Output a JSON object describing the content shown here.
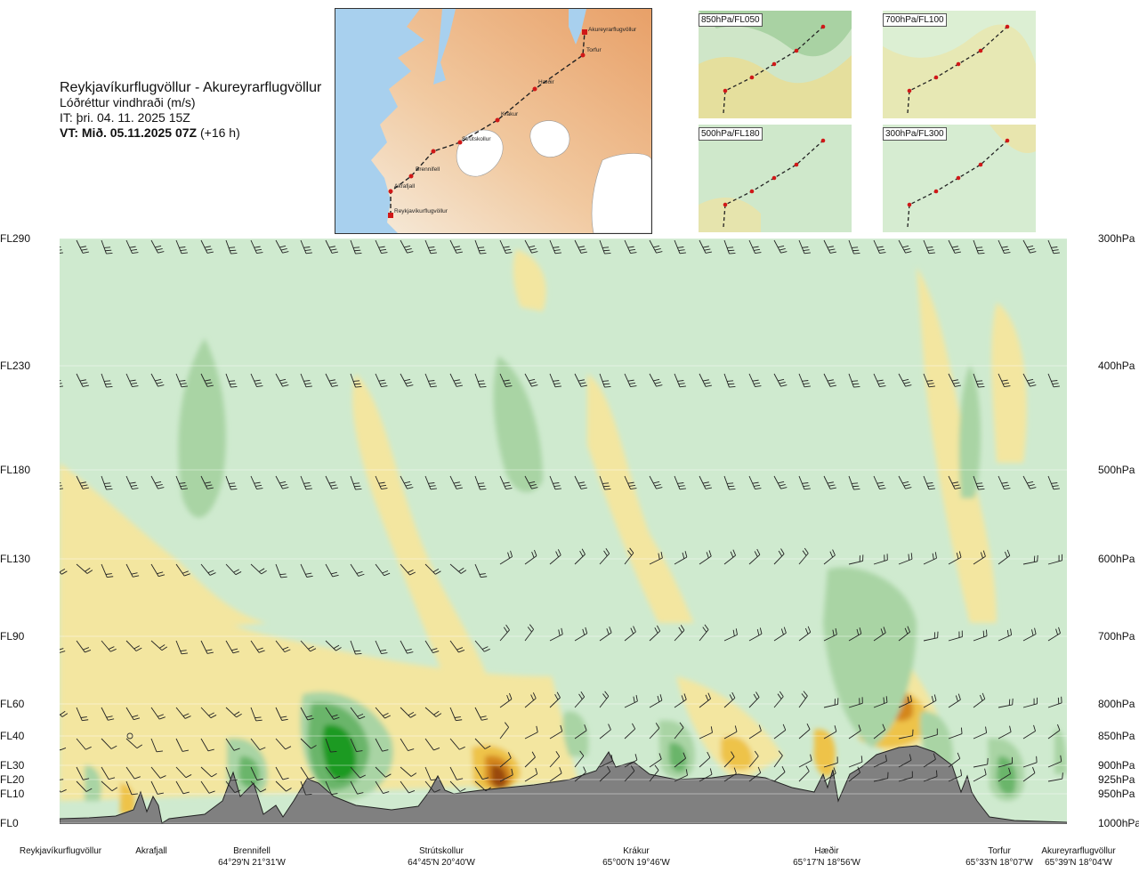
{
  "header": {
    "route": "Reykjavíkurflugvöllur - Akureyrarflugvöllur",
    "variable": "Lóðréttur vindhraði (m/s)",
    "issue_time": "IT: þri. 04. 11. 2025 15Z",
    "valid_time": "VT: Mið. 05.11.2025 07Z",
    "lead": "(+16 h)"
  },
  "map": {
    "labels": [
      "Akureyrarflugvöllur",
      "Torfur",
      "Hæðir",
      "Krákur",
      "Strútskollur",
      "Brennifell",
      "Akrafjall",
      "Reykjavíkurflugvöllur"
    ],
    "colors": {
      "sea": "#a8d0ee",
      "land_low": "#f3ecdd",
      "land_high": "#e7a472",
      "ice": "#ffffff",
      "route": "#d01818"
    }
  },
  "thumbs": [
    {
      "label": "850hPa/FL050"
    },
    {
      "label": "700hPa/FL100"
    },
    {
      "label": "500hPa/FL180"
    },
    {
      "label": "300hPa/FL300"
    }
  ],
  "chart_data": {
    "type": "heatmap",
    "title": "Lóðréttur vindhraði (m/s)",
    "left_axis_labels": [
      "FL290",
      "FL230",
      "FL180",
      "FL130",
      "FL90",
      "FL60",
      "FL40",
      "FL30",
      "FL20",
      "FL10",
      "FL0"
    ],
    "right_axis_labels": [
      "300hPa",
      "400hPa",
      "500hPa",
      "600hPa",
      "700hPa",
      "800hPa",
      "850hPa",
      "900hPa",
      "925hPa",
      "950hPa",
      "1000hPa"
    ],
    "colors": {
      "background": "#cfeacf",
      "near_zero": "#f7fbe8",
      "up_weak": "#f3e6a0",
      "up_mod": "#eec34a",
      "up_strong": "#d4871c",
      "up_max": "#9a4a10",
      "down_weak": "#a9d4a4",
      "down_mod": "#6bb56a",
      "down_strong": "#1e9a23",
      "terrain": "#808080"
    },
    "locations": [
      {
        "name": "Reykjavíkurflugvöllur",
        "coord": ""
      },
      {
        "name": "Akrafjall",
        "coord": ""
      },
      {
        "name": "Brennifell",
        "coord": "64°29'N 21°31'W"
      },
      {
        "name": "Strútskollur",
        "coord": "64°45'N 20°40'W"
      },
      {
        "name": "Krákur",
        "coord": "65°00'N 19°46'W"
      },
      {
        "name": "Hæðir",
        "coord": "65°17'N 18°56'W"
      },
      {
        "name": "Torfur",
        "coord": "65°33'N 18°07'W"
      },
      {
        "name": "Akureyrarflugvöllur",
        "coord": "65°39'N 18°04'W"
      }
    ]
  }
}
